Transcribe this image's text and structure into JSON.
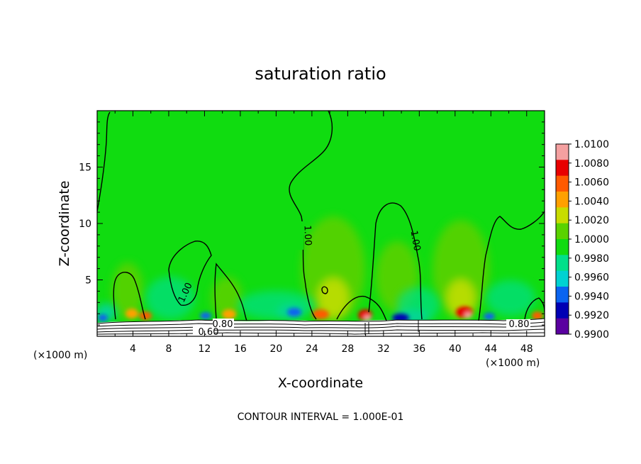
{
  "chart_data": {
    "type": "heatmap",
    "title": "saturation ratio",
    "xlabel": "X-coordinate",
    "ylabel": "Z-coordinate",
    "x_unit": "(×1000 m)",
    "y_unit": "(×1000 m)",
    "xlim": [
      0,
      50
    ],
    "ylim": [
      0,
      20
    ],
    "x_ticks": [
      4,
      8,
      12,
      16,
      20,
      24,
      28,
      32,
      36,
      40,
      44,
      48
    ],
    "y_ticks": [
      5,
      10,
      15
    ],
    "colorbar": {
      "levels": [
        "1.0100",
        "1.0080",
        "1.0060",
        "1.0040",
        "1.0020",
        "1.0000",
        "0.9980",
        "0.9960",
        "0.9940",
        "0.9920",
        "0.9900"
      ],
      "colors": [
        "#f4a0a0",
        "#e80000",
        "#ff5a00",
        "#ffa000",
        "#c8dc00",
        "#5ad200",
        "#10dc10",
        "#00e08a",
        "#00d2d2",
        "#0a64f0",
        "#0000b4",
        "#5a00a0"
      ]
    },
    "contour_labels": [
      {
        "text": "1.00",
        "x": 22.4,
        "z": 9.1
      },
      {
        "text": "1.00",
        "x": 7.9,
        "z": 3.9
      },
      {
        "text": "1.00",
        "x": 35.0,
        "z": 8.6
      },
      {
        "text": "0.80",
        "x": 13.8,
        "z": 1.0
      },
      {
        "text": "0.60",
        "x": 12.5,
        "z": 0.5
      },
      {
        "text": "0.80",
        "x": 46.9,
        "z": 1.0
      }
    ],
    "contour_interval_text": "CONTOUR INTERVAL = 1.000E-01"
  }
}
